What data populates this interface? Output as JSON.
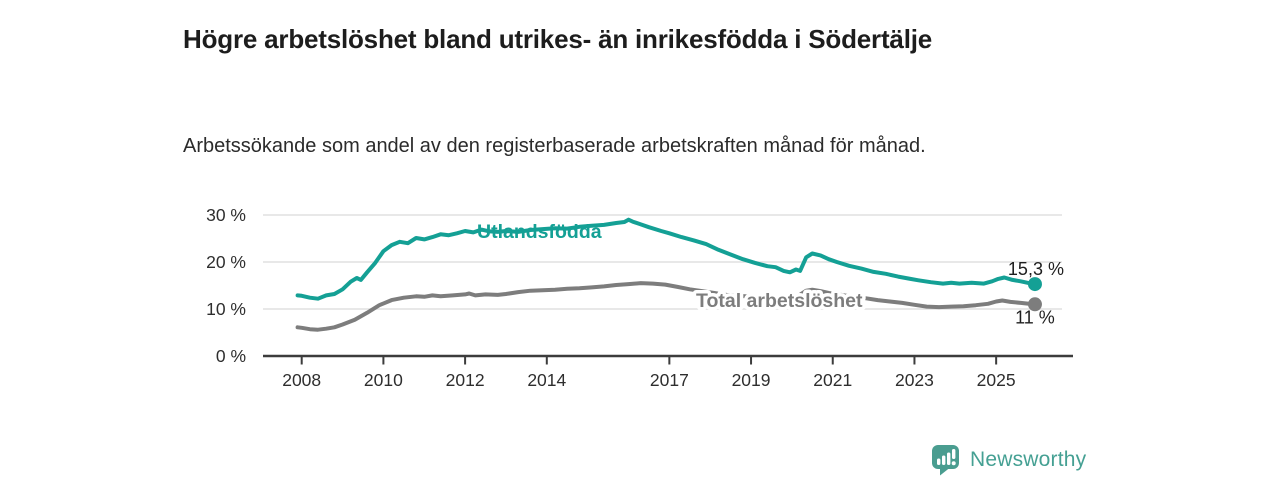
{
  "header": {
    "title": "Högre arbetslöshet bland utrikes- än inrikesfödda i Södertälje",
    "subtitle": "Arbetssökande som andel av den registerbaserade arbetskraften månad för månad."
  },
  "chart_data": {
    "type": "line",
    "title": "Högre arbetslöshet bland utrikes- än inrikesfödda i Södertälje",
    "xlabel": "",
    "ylabel": "",
    "unit": "%",
    "grid": "horizontal",
    "legend_position": "inline-labels",
    "x_axis": {
      "ticks": [
        2008,
        2010,
        2012,
        2014,
        2017,
        2019,
        2021,
        2023,
        2025
      ],
      "tick_labels": [
        "2008",
        "2010",
        "2012",
        "2014",
        "2017",
        "2019",
        "2021",
        "2023",
        "2025"
      ],
      "range": [
        2007.9,
        2026.0
      ]
    },
    "y_axis": {
      "ticks": [
        0,
        10,
        20,
        30
      ],
      "tick_labels": [
        "0 %",
        "10 %",
        "20 %",
        "30 %"
      ],
      "range": [
        0,
        30
      ]
    },
    "series": [
      {
        "name": "Utlandsfödda",
        "color": "#14a095",
        "end_label": "15,3 %",
        "end_value": 15.3,
        "points": [
          [
            2007.9,
            12.9
          ],
          [
            2008.0,
            12.8
          ],
          [
            2008.2,
            12.4
          ],
          [
            2008.4,
            12.2
          ],
          [
            2008.6,
            12.9
          ],
          [
            2008.8,
            13.2
          ],
          [
            2009.0,
            14.2
          ],
          [
            2009.2,
            15.8
          ],
          [
            2009.35,
            16.6
          ],
          [
            2009.45,
            16.2
          ],
          [
            2009.6,
            17.8
          ],
          [
            2009.8,
            19.8
          ],
          [
            2010.0,
            22.3
          ],
          [
            2010.2,
            23.6
          ],
          [
            2010.4,
            24.3
          ],
          [
            2010.6,
            24.0
          ],
          [
            2010.8,
            25.1
          ],
          [
            2011.0,
            24.8
          ],
          [
            2011.2,
            25.3
          ],
          [
            2011.4,
            25.9
          ],
          [
            2011.6,
            25.7
          ],
          [
            2011.8,
            26.1
          ],
          [
            2012.0,
            26.6
          ],
          [
            2012.2,
            26.3
          ],
          [
            2012.4,
            26.9
          ],
          [
            2012.6,
            26.5
          ],
          [
            2012.8,
            26.4
          ],
          [
            2013.0,
            26.6
          ],
          [
            2013.3,
            26.4
          ],
          [
            2013.6,
            26.8
          ],
          [
            2013.9,
            27.0
          ],
          [
            2014.2,
            27.2
          ],
          [
            2014.5,
            27.1
          ],
          [
            2014.8,
            27.5
          ],
          [
            2015.1,
            27.7
          ],
          [
            2015.4,
            27.9
          ],
          [
            2015.7,
            28.3
          ],
          [
            2015.9,
            28.5
          ],
          [
            2016.0,
            29.0
          ],
          [
            2016.1,
            28.6
          ],
          [
            2016.3,
            28.0
          ],
          [
            2016.5,
            27.4
          ],
          [
            2016.8,
            26.6
          ],
          [
            2017.0,
            26.1
          ],
          [
            2017.3,
            25.3
          ],
          [
            2017.6,
            24.6
          ],
          [
            2017.9,
            23.8
          ],
          [
            2018.2,
            22.6
          ],
          [
            2018.5,
            21.6
          ],
          [
            2018.8,
            20.6
          ],
          [
            2019.1,
            19.8
          ],
          [
            2019.4,
            19.1
          ],
          [
            2019.6,
            18.9
          ],
          [
            2019.8,
            18.1
          ],
          [
            2019.95,
            17.8
          ],
          [
            2020.1,
            18.4
          ],
          [
            2020.2,
            18.1
          ],
          [
            2020.35,
            21.0
          ],
          [
            2020.5,
            21.8
          ],
          [
            2020.7,
            21.4
          ],
          [
            2020.9,
            20.6
          ],
          [
            2021.1,
            20.0
          ],
          [
            2021.4,
            19.2
          ],
          [
            2021.7,
            18.6
          ],
          [
            2022.0,
            17.9
          ],
          [
            2022.3,
            17.5
          ],
          [
            2022.6,
            16.9
          ],
          [
            2022.9,
            16.4
          ],
          [
            2023.1,
            16.1
          ],
          [
            2023.4,
            15.7
          ],
          [
            2023.7,
            15.4
          ],
          [
            2023.9,
            15.6
          ],
          [
            2024.1,
            15.4
          ],
          [
            2024.4,
            15.6
          ],
          [
            2024.7,
            15.4
          ],
          [
            2024.9,
            15.9
          ],
          [
            2025.05,
            16.4
          ],
          [
            2025.2,
            16.7
          ],
          [
            2025.4,
            16.2
          ],
          [
            2025.6,
            15.9
          ],
          [
            2025.8,
            15.5
          ],
          [
            2025.95,
            15.3
          ]
        ]
      },
      {
        "name": "Total arbetslöshet",
        "color": "#7d7d7d",
        "end_label": "11 %",
        "end_value": 11,
        "points": [
          [
            2007.9,
            6.1
          ],
          [
            2008.0,
            6.0
          ],
          [
            2008.2,
            5.7
          ],
          [
            2008.4,
            5.6
          ],
          [
            2008.6,
            5.8
          ],
          [
            2008.8,
            6.1
          ],
          [
            2009.0,
            6.7
          ],
          [
            2009.3,
            7.7
          ],
          [
            2009.6,
            9.2
          ],
          [
            2009.9,
            10.8
          ],
          [
            2010.2,
            11.9
          ],
          [
            2010.5,
            12.4
          ],
          [
            2010.8,
            12.7
          ],
          [
            2011.0,
            12.6
          ],
          [
            2011.2,
            12.9
          ],
          [
            2011.4,
            12.7
          ],
          [
            2011.7,
            12.9
          ],
          [
            2012.0,
            13.1
          ],
          [
            2012.1,
            13.3
          ],
          [
            2012.25,
            12.9
          ],
          [
            2012.5,
            13.1
          ],
          [
            2012.8,
            13.0
          ],
          [
            2013.0,
            13.2
          ],
          [
            2013.3,
            13.6
          ],
          [
            2013.6,
            13.9
          ],
          [
            2013.9,
            14.0
          ],
          [
            2014.2,
            14.1
          ],
          [
            2014.5,
            14.3
          ],
          [
            2014.8,
            14.4
          ],
          [
            2015.1,
            14.6
          ],
          [
            2015.4,
            14.8
          ],
          [
            2015.7,
            15.1
          ],
          [
            2016.0,
            15.3
          ],
          [
            2016.3,
            15.5
          ],
          [
            2016.6,
            15.4
          ],
          [
            2016.9,
            15.2
          ],
          [
            2017.2,
            14.7
          ],
          [
            2017.5,
            14.2
          ],
          [
            2017.8,
            13.8
          ],
          [
            2018.1,
            13.4
          ],
          [
            2018.4,
            13.0
          ],
          [
            2018.7,
            12.8
          ],
          [
            2019.0,
            12.6
          ],
          [
            2019.4,
            12.4
          ],
          [
            2019.8,
            12.2
          ],
          [
            2020.1,
            12.5
          ],
          [
            2020.35,
            13.9
          ],
          [
            2020.5,
            14.1
          ],
          [
            2020.7,
            13.8
          ],
          [
            2020.9,
            13.4
          ],
          [
            2021.2,
            13.0
          ],
          [
            2021.5,
            12.6
          ],
          [
            2021.8,
            12.3
          ],
          [
            2022.1,
            11.9
          ],
          [
            2022.4,
            11.6
          ],
          [
            2022.7,
            11.3
          ],
          [
            2023.0,
            10.9
          ],
          [
            2023.3,
            10.5
          ],
          [
            2023.6,
            10.4
          ],
          [
            2023.9,
            10.5
          ],
          [
            2024.2,
            10.6
          ],
          [
            2024.5,
            10.8
          ],
          [
            2024.8,
            11.1
          ],
          [
            2025.0,
            11.6
          ],
          [
            2025.15,
            11.8
          ],
          [
            2025.35,
            11.5
          ],
          [
            2025.6,
            11.3
          ],
          [
            2025.8,
            11.1
          ],
          [
            2025.95,
            11.0
          ]
        ]
      }
    ]
  },
  "footer": {
    "brand": "Newsworthy",
    "brand_color": "#45a093",
    "logo_icon": "bar-chart-speech-bubble-icon"
  },
  "colors": {
    "accent_teal": "#14a095",
    "line_gray": "#7d7d7d",
    "axis": "#3c3c3c",
    "grid": "#e0e0e0",
    "title_text": "#1d1d1d",
    "body_text": "#2b2b2b"
  }
}
